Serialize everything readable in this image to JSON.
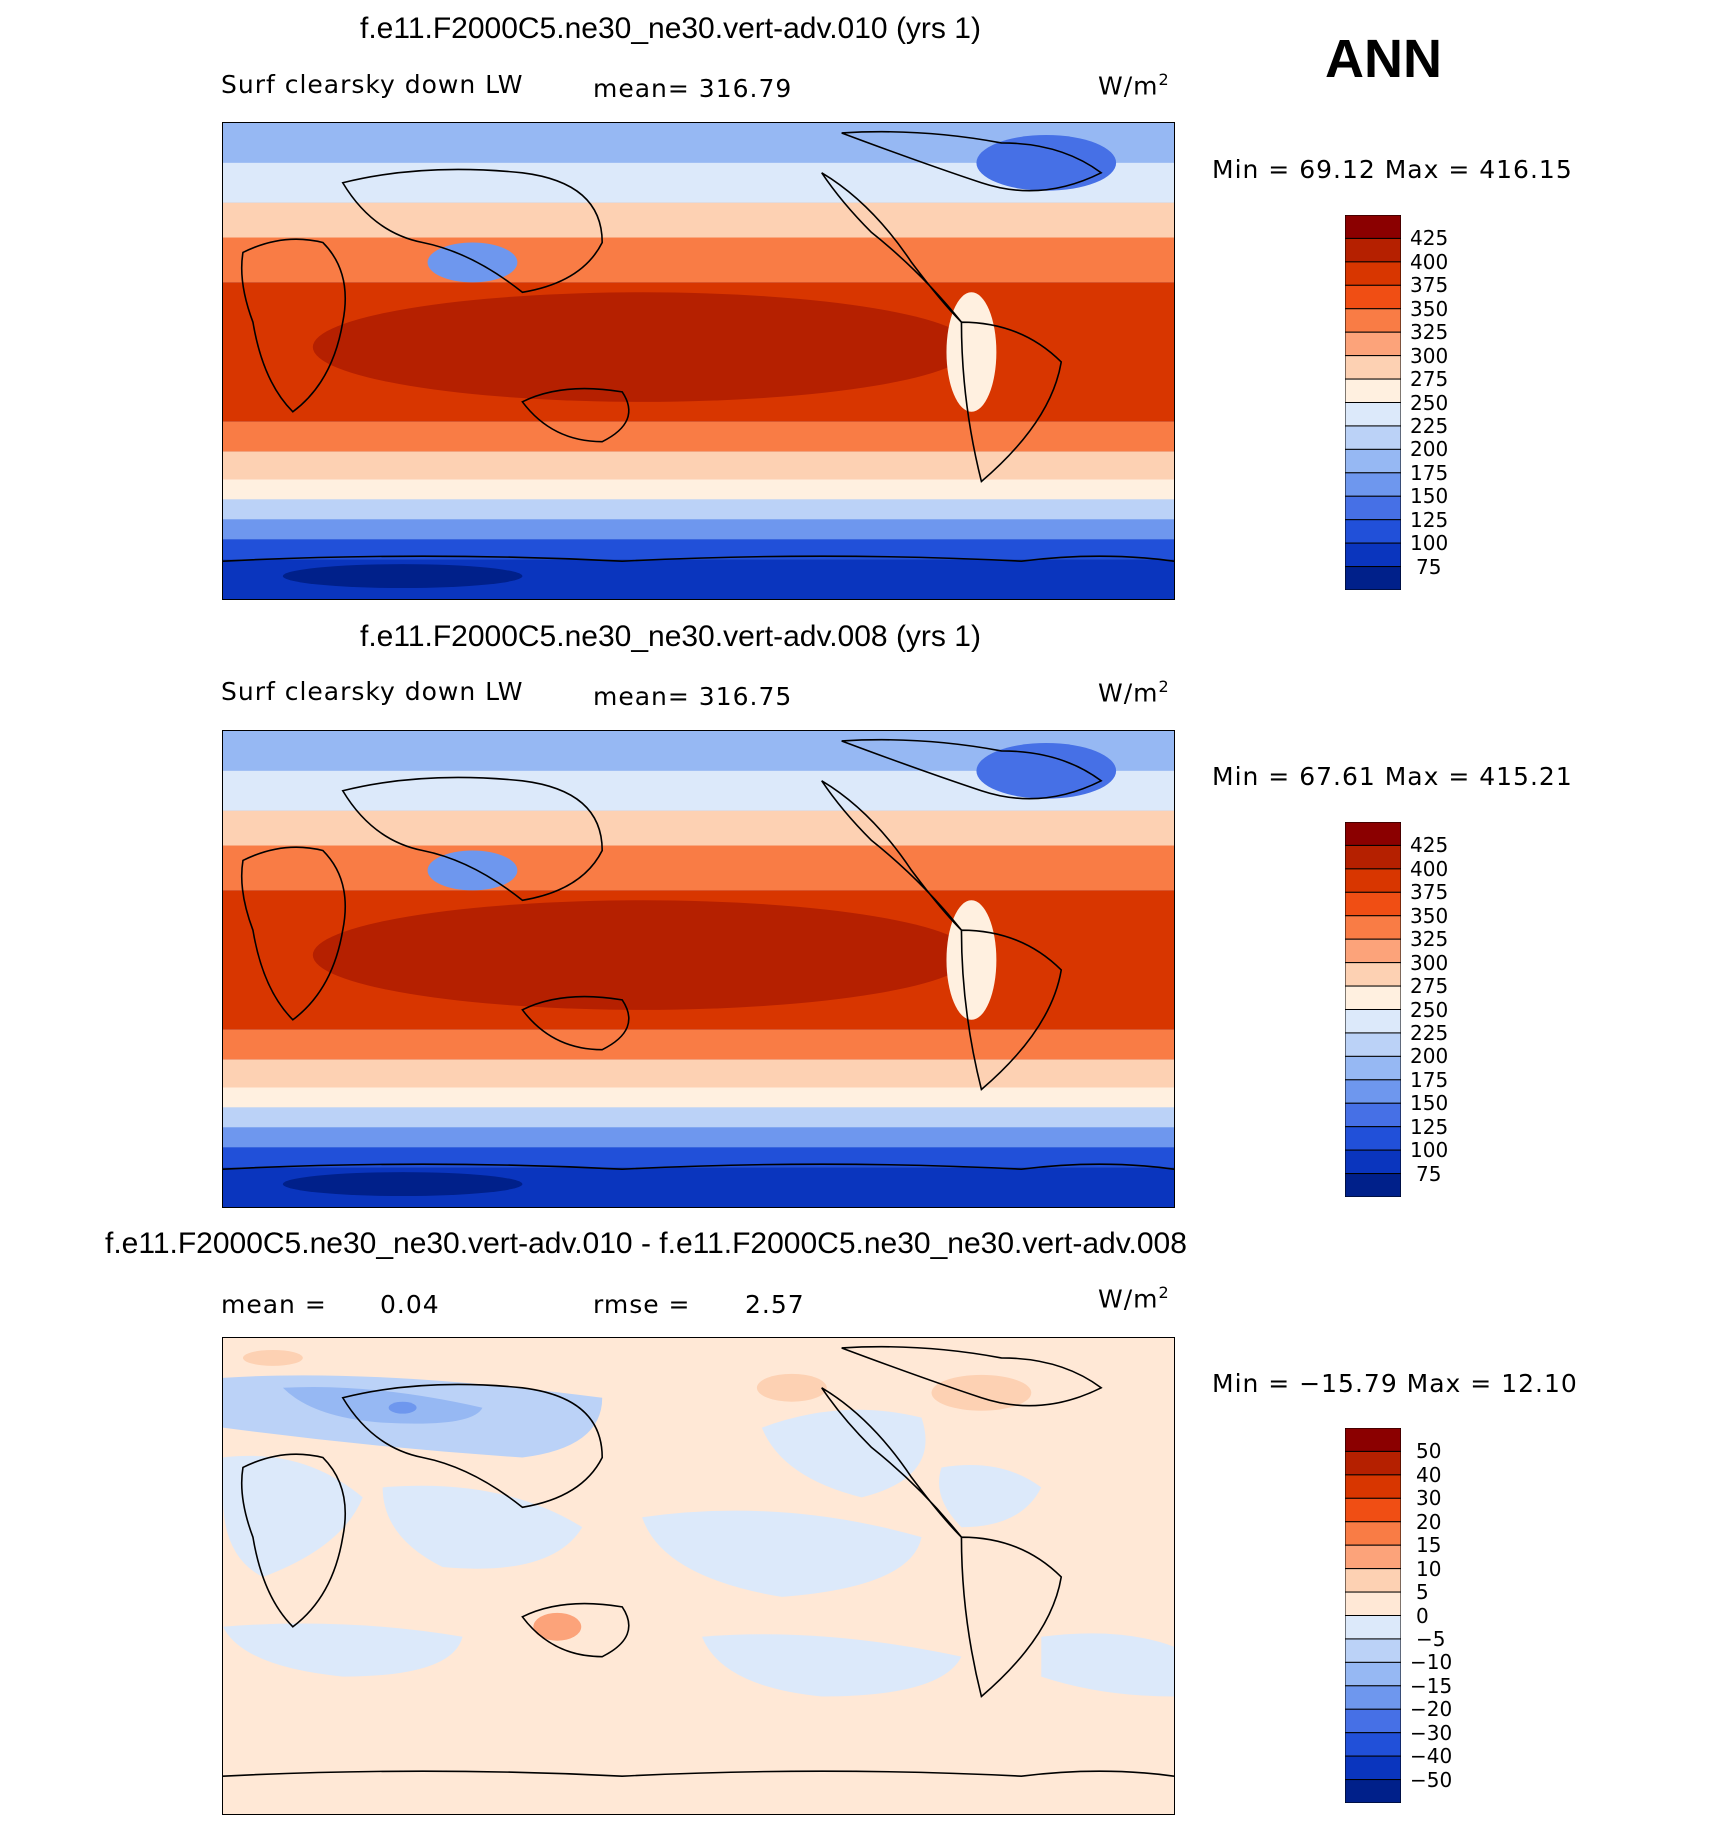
{
  "season": "ANN",
  "panels": [
    {
      "title": "f.e11.F2000C5.ne30_ne30.vert-adv.010 (yrs 1)",
      "left_label": "Surf clearsky down LW",
      "stat_label": "mean= 316.79",
      "units": "W/m",
      "units_sup": "2",
      "minmax": "Min =   69.12 Max = 416.15",
      "levels": [
        "425",
        "400",
        "375",
        "350",
        "325",
        "300",
        "275",
        "250",
        "225",
        "200",
        "175",
        "150",
        "125",
        "100",
        "75"
      ],
      "colors": [
        "#8B0000",
        "#B52000",
        "#D83600",
        "#F04E14",
        "#F97C45",
        "#FCA37A",
        "#FDD1B3",
        "#FFF0E0",
        "#DCE9FA",
        "#BBD2F7",
        "#96B8F3",
        "#6E97EE",
        "#4670E6",
        "#2150D9",
        "#0A35BE",
        "#00208A"
      ]
    },
    {
      "title": "f.e11.F2000C5.ne30_ne30.vert-adv.008 (yrs 1)",
      "left_label": "Surf clearsky down LW",
      "stat_label": "mean= 316.75",
      "units": "W/m",
      "units_sup": "2",
      "minmax": "Min =   67.61 Max = 415.21",
      "levels": [
        "425",
        "400",
        "375",
        "350",
        "325",
        "300",
        "275",
        "250",
        "225",
        "200",
        "175",
        "150",
        "125",
        "100",
        "75"
      ],
      "colors": [
        "#8B0000",
        "#B52000",
        "#D83600",
        "#F04E14",
        "#F97C45",
        "#FCA37A",
        "#FDD1B3",
        "#FFF0E0",
        "#DCE9FA",
        "#BBD2F7",
        "#96B8F3",
        "#6E97EE",
        "#4670E6",
        "#2150D9",
        "#0A35BE",
        "#00208A"
      ]
    },
    {
      "title": "f.e11.F2000C5.ne30_ne30.vert-adv.010 - f.e11.F2000C5.ne30_ne30.vert-adv.008",
      "mean_label": "mean =",
      "mean_value": "0.04",
      "rmse_label": "rmse =",
      "rmse_value": "2.57",
      "units": "W/m",
      "units_sup": "2",
      "minmax": "Min = −15.79 Max =   12.10",
      "levels": [
        "50",
        "40",
        "30",
        "20",
        "15",
        "10",
        "5",
        "0",
        "−5",
        "−10",
        "−15",
        "−20",
        "−30",
        "−40",
        "−50"
      ],
      "colors": [
        "#8B0000",
        "#B52000",
        "#D83600",
        "#F04E14",
        "#F97C45",
        "#FCA37A",
        "#FDD1B3",
        "#FFE8D6",
        "#DCE9FA",
        "#BBD2F7",
        "#96B8F3",
        "#6E97EE",
        "#4670E6",
        "#2150D9",
        "#0A35BE",
        "#00208A"
      ]
    }
  ],
  "chart_data": [
    {
      "type": "heatmap",
      "title": "f.e11.F2000C5.ne30_ne30.vert-adv.010 (yrs 1)",
      "variable": "Surf clearsky down LW",
      "units": "W/m2",
      "mean": 316.79,
      "min": 69.12,
      "max": 416.15,
      "contour_levels": [
        75,
        100,
        125,
        150,
        175,
        200,
        225,
        250,
        275,
        300,
        325,
        350,
        375,
        400,
        425
      ]
    },
    {
      "type": "heatmap",
      "title": "f.e11.F2000C5.ne30_ne30.vert-adv.008 (yrs 1)",
      "variable": "Surf clearsky down LW",
      "units": "W/m2",
      "mean": 316.75,
      "min": 67.61,
      "max": 415.21,
      "contour_levels": [
        75,
        100,
        125,
        150,
        175,
        200,
        225,
        250,
        275,
        300,
        325,
        350,
        375,
        400,
        425
      ]
    },
    {
      "type": "heatmap",
      "title": "f.e11.F2000C5.ne30_ne30.vert-adv.010 - f.e11.F2000C5.ne30_ne30.vert-adv.008",
      "units": "W/m2",
      "mean": 0.04,
      "rmse": 2.57,
      "min": -15.79,
      "max": 12.1,
      "contour_levels": [
        -50,
        -40,
        -30,
        -20,
        -15,
        -10,
        -5,
        0,
        5,
        10,
        15,
        20,
        30,
        40,
        50
      ]
    }
  ]
}
